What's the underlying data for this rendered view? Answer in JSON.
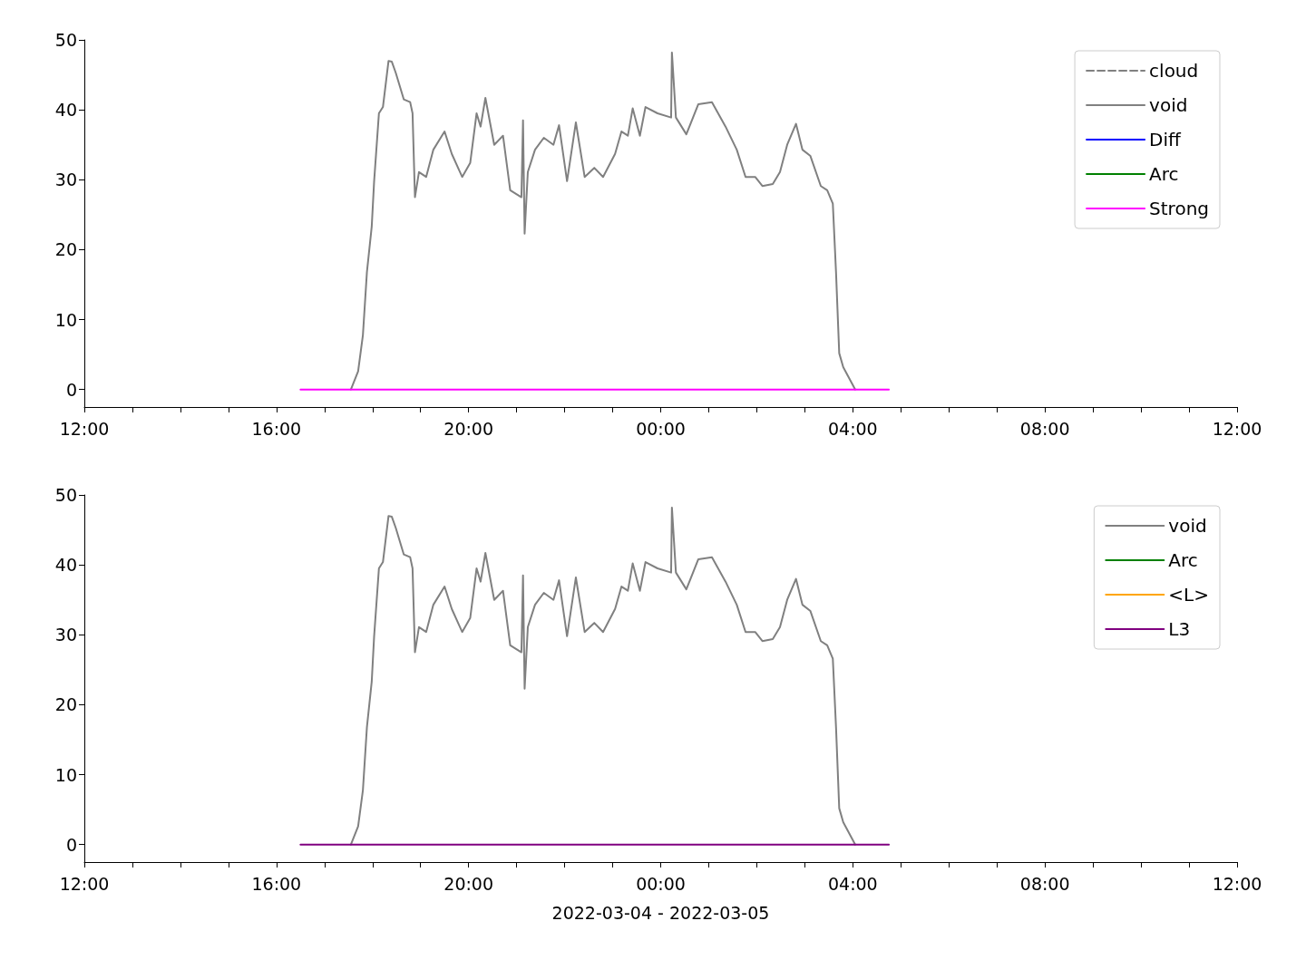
{
  "chart_data": [
    {
      "type": "line",
      "xlim": [
        "2022-03-04T12:00",
        "2022-03-05T12:00"
      ],
      "ylim": [
        -2.5,
        50
      ],
      "yticks": [
        0,
        10,
        20,
        30,
        40,
        50
      ],
      "xticks": [
        {
          "value": "2022-03-04T12:00",
          "label": "12:00"
        },
        {
          "value": "2022-03-04T13:00",
          "label": null
        },
        {
          "value": "2022-03-04T14:00",
          "label": null
        },
        {
          "value": "2022-03-04T15:00",
          "label": null
        },
        {
          "value": "2022-03-04T16:00",
          "label": "16:00"
        },
        {
          "value": "2022-03-04T17:00",
          "label": null
        },
        {
          "value": "2022-03-04T18:00",
          "label": null
        },
        {
          "value": "2022-03-04T19:00",
          "label": null
        },
        {
          "value": "2022-03-04T20:00",
          "label": "20:00"
        },
        {
          "value": "2022-03-04T21:00",
          "label": null
        },
        {
          "value": "2022-03-04T22:00",
          "label": null
        },
        {
          "value": "2022-03-04T23:00",
          "label": null
        },
        {
          "value": "2022-03-05T00:00",
          "label": "00:00"
        },
        {
          "value": "2022-03-05T01:00",
          "label": null
        },
        {
          "value": "2022-03-05T02:00",
          "label": null
        },
        {
          "value": "2022-03-05T03:00",
          "label": null
        },
        {
          "value": "2022-03-05T04:00",
          "label": "04:00"
        },
        {
          "value": "2022-03-05T05:00",
          "label": null
        },
        {
          "value": "2022-03-05T06:00",
          "label": null
        },
        {
          "value": "2022-03-05T07:00",
          "label": null
        },
        {
          "value": "2022-03-05T08:00",
          "label": "08:00"
        },
        {
          "value": "2022-03-05T09:00",
          "label": null
        },
        {
          "value": "2022-03-05T10:00",
          "label": null
        },
        {
          "value": "2022-03-05T11:00",
          "label": null
        },
        {
          "value": "2022-03-05T12:00",
          "label": "12:00"
        }
      ],
      "legend": "top right",
      "grid": false,
      "series": [
        {
          "name": "cloud",
          "color": "#808080",
          "line_style": "dashed"
        },
        {
          "name": "void",
          "color": "#808080",
          "x": [
            "2022-03-04T17:33",
            "2022-03-04T17:42",
            "2022-03-04T17:48",
            "2022-03-04T17:53",
            "2022-03-04T17:59",
            "2022-03-04T18:02",
            "2022-03-04T18:08",
            "2022-03-04T18:13",
            "2022-03-04T18:20",
            "2022-03-04T18:24",
            "2022-03-04T18:29",
            "2022-03-04T18:39",
            "2022-03-04T18:47",
            "2022-03-04T18:50",
            "2022-03-04T18:53",
            "2022-03-04T18:58",
            "2022-03-04T19:07",
            "2022-03-04T19:16",
            "2022-03-04T19:30",
            "2022-03-04T19:39",
            "2022-03-04T19:52",
            "2022-03-04T20:02",
            "2022-03-04T20:10",
            "2022-03-04T20:15",
            "2022-03-04T20:21",
            "2022-03-04T20:32",
            "2022-03-04T20:43",
            "2022-03-04T20:52",
            "2022-03-04T21:06",
            "2022-03-04T21:08",
            "2022-03-04T21:10",
            "2022-03-04T21:14",
            "2022-03-04T21:23",
            "2022-03-04T21:34",
            "2022-03-04T21:46",
            "2022-03-04T21:53",
            "2022-03-04T22:03",
            "2022-03-04T22:14",
            "2022-03-04T22:25",
            "2022-03-04T22:37",
            "2022-03-04T22:48",
            "2022-03-04T23:03",
            "2022-03-04T23:11",
            "2022-03-04T23:19",
            "2022-03-04T23:25",
            "2022-03-04T23:34",
            "2022-03-04T23:41",
            "2022-03-04T23:56",
            "2022-03-05T00:13",
            "2022-03-05T00:14",
            "2022-03-05T00:19",
            "2022-03-05T00:32",
            "2022-03-05T00:47",
            "2022-03-05T01:04",
            "2022-03-05T01:21",
            "2022-03-05T01:35",
            "2022-03-05T01:46",
            "2022-03-05T01:58",
            "2022-03-05T02:07",
            "2022-03-05T02:20",
            "2022-03-05T02:29",
            "2022-03-05T02:38",
            "2022-03-05T02:49",
            "2022-03-05T02:57",
            "2022-03-05T03:07",
            "2022-03-05T03:20",
            "2022-03-05T03:28",
            "2022-03-05T03:35",
            "2022-03-05T03:39",
            "2022-03-05T03:43",
            "2022-03-05T03:48",
            "2022-03-05T04:03"
          ],
          "values": [
            0,
            2.6,
            7.8,
            16.8,
            23.3,
            29.8,
            39.5,
            40.4,
            47.0,
            46.9,
            45.3,
            41.5,
            41.1,
            39.5,
            27.5,
            31.1,
            30.4,
            34.3,
            36.9,
            33.7,
            30.4,
            32.4,
            39.5,
            37.6,
            41.7,
            35.0,
            36.3,
            28.5,
            27.5,
            38.5,
            22.3,
            31.1,
            34.3,
            36.0,
            35.0,
            37.8,
            29.8,
            38.2,
            30.4,
            31.7,
            30.4,
            33.7,
            36.9,
            36.3,
            40.2,
            36.3,
            40.4,
            39.5,
            38.9,
            48.2,
            38.9,
            36.5,
            40.8,
            41.1,
            37.6,
            34.3,
            30.4,
            30.4,
            29.1,
            29.4,
            31.1,
            35.0,
            38.0,
            34.3,
            33.4,
            29.1,
            28.5,
            26.6,
            16.8,
            5.2,
            3.2,
            0
          ]
        },
        {
          "name": "Diff",
          "color": "#0000ff"
        },
        {
          "name": "Arc",
          "color": "#008000"
        },
        {
          "name": "Strong",
          "color": "#ff00ff",
          "x": [
            "2022-03-04T16:30",
            "2022-03-05T04:45"
          ],
          "values": [
            0,
            0
          ]
        }
      ]
    },
    {
      "type": "line",
      "xlim": [
        "2022-03-04T12:00",
        "2022-03-05T12:00"
      ],
      "ylim": [
        -2.5,
        50
      ],
      "yticks": [
        0,
        10,
        20,
        30,
        40,
        50
      ],
      "xlabel": "2022-03-04 - 2022-03-05",
      "xticks": [
        {
          "value": "2022-03-04T12:00",
          "label": "12:00"
        },
        {
          "value": "2022-03-04T13:00",
          "label": null
        },
        {
          "value": "2022-03-04T14:00",
          "label": null
        },
        {
          "value": "2022-03-04T15:00",
          "label": null
        },
        {
          "value": "2022-03-04T16:00",
          "label": "16:00"
        },
        {
          "value": "2022-03-04T17:00",
          "label": null
        },
        {
          "value": "2022-03-04T18:00",
          "label": null
        },
        {
          "value": "2022-03-04T19:00",
          "label": null
        },
        {
          "value": "2022-03-04T20:00",
          "label": "20:00"
        },
        {
          "value": "2022-03-04T21:00",
          "label": null
        },
        {
          "value": "2022-03-04T22:00",
          "label": null
        },
        {
          "value": "2022-03-04T23:00",
          "label": null
        },
        {
          "value": "2022-03-05T00:00",
          "label": "00:00"
        },
        {
          "value": "2022-03-05T01:00",
          "label": null
        },
        {
          "value": "2022-03-05T02:00",
          "label": null
        },
        {
          "value": "2022-03-05T03:00",
          "label": null
        },
        {
          "value": "2022-03-05T04:00",
          "label": "04:00"
        },
        {
          "value": "2022-03-05T05:00",
          "label": null
        },
        {
          "value": "2022-03-05T06:00",
          "label": null
        },
        {
          "value": "2022-03-05T07:00",
          "label": null
        },
        {
          "value": "2022-03-05T08:00",
          "label": "08:00"
        },
        {
          "value": "2022-03-05T09:00",
          "label": null
        },
        {
          "value": "2022-03-05T10:00",
          "label": null
        },
        {
          "value": "2022-03-05T11:00",
          "label": null
        },
        {
          "value": "2022-03-05T12:00",
          "label": "12:00"
        }
      ],
      "legend": "top right",
      "grid": false,
      "series": [
        {
          "name": "void",
          "color": "#808080",
          "x": [
            "2022-03-04T17:33",
            "2022-03-04T17:42",
            "2022-03-04T17:48",
            "2022-03-04T17:53",
            "2022-03-04T17:59",
            "2022-03-04T18:02",
            "2022-03-04T18:08",
            "2022-03-04T18:13",
            "2022-03-04T18:20",
            "2022-03-04T18:24",
            "2022-03-04T18:29",
            "2022-03-04T18:39",
            "2022-03-04T18:47",
            "2022-03-04T18:50",
            "2022-03-04T18:53",
            "2022-03-04T18:58",
            "2022-03-04T19:07",
            "2022-03-04T19:16",
            "2022-03-04T19:30",
            "2022-03-04T19:39",
            "2022-03-04T19:52",
            "2022-03-04T20:02",
            "2022-03-04T20:10",
            "2022-03-04T20:15",
            "2022-03-04T20:21",
            "2022-03-04T20:32",
            "2022-03-04T20:43",
            "2022-03-04T20:52",
            "2022-03-04T21:06",
            "2022-03-04T21:08",
            "2022-03-04T21:10",
            "2022-03-04T21:14",
            "2022-03-04T21:23",
            "2022-03-04T21:34",
            "2022-03-04T21:46",
            "2022-03-04T21:53",
            "2022-03-04T22:03",
            "2022-03-04T22:14",
            "2022-03-04T22:25",
            "2022-03-04T22:37",
            "2022-03-04T22:48",
            "2022-03-04T23:03",
            "2022-03-04T23:11",
            "2022-03-04T23:19",
            "2022-03-04T23:25",
            "2022-03-04T23:34",
            "2022-03-04T23:41",
            "2022-03-04T23:56",
            "2022-03-05T00:13",
            "2022-03-05T00:14",
            "2022-03-05T00:19",
            "2022-03-05T00:32",
            "2022-03-05T00:47",
            "2022-03-05T01:04",
            "2022-03-05T01:21",
            "2022-03-05T01:35",
            "2022-03-05T01:46",
            "2022-03-05T01:58",
            "2022-03-05T02:07",
            "2022-03-05T02:20",
            "2022-03-05T02:29",
            "2022-03-05T02:38",
            "2022-03-05T02:49",
            "2022-03-05T02:57",
            "2022-03-05T03:07",
            "2022-03-05T03:20",
            "2022-03-05T03:28",
            "2022-03-05T03:35",
            "2022-03-05T03:39",
            "2022-03-05T03:43",
            "2022-03-05T03:48",
            "2022-03-05T04:03"
          ],
          "values": [
            0,
            2.6,
            7.8,
            16.8,
            23.3,
            29.8,
            39.5,
            40.4,
            47.0,
            46.9,
            45.3,
            41.5,
            41.1,
            39.5,
            27.5,
            31.1,
            30.4,
            34.3,
            36.9,
            33.7,
            30.4,
            32.4,
            39.5,
            37.6,
            41.7,
            35.0,
            36.3,
            28.5,
            27.5,
            38.5,
            22.3,
            31.1,
            34.3,
            36.0,
            35.0,
            37.8,
            29.8,
            38.2,
            30.4,
            31.7,
            30.4,
            33.7,
            36.9,
            36.3,
            40.2,
            36.3,
            40.4,
            39.5,
            38.9,
            48.2,
            38.9,
            36.5,
            40.8,
            41.1,
            37.6,
            34.3,
            30.4,
            30.4,
            29.1,
            29.4,
            31.1,
            35.0,
            38.0,
            34.3,
            33.4,
            29.1,
            28.5,
            26.6,
            16.8,
            5.2,
            3.2,
            0
          ]
        },
        {
          "name": "Arc",
          "color": "#008000"
        },
        {
          "name": "<L>",
          "color": "#ffa500"
        },
        {
          "name": "L3",
          "color": "#800080",
          "x": [
            "2022-03-04T16:30",
            "2022-03-05T04:45"
          ],
          "values": [
            0,
            0
          ]
        }
      ]
    }
  ]
}
